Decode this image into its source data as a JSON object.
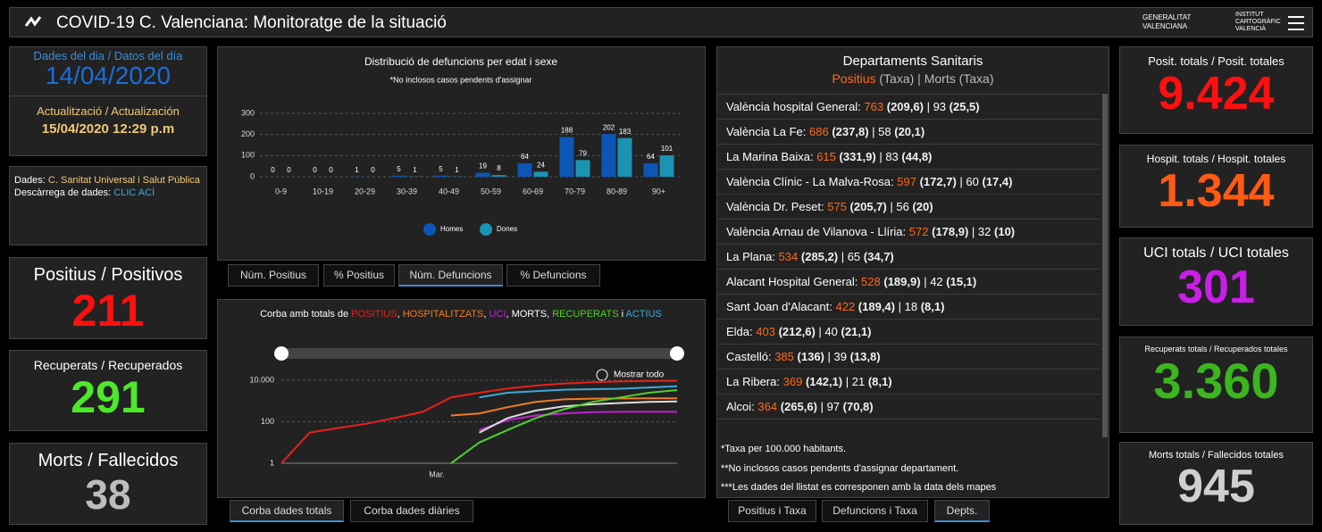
{
  "header": {
    "title": "COVID-19 C. Valenciana: Monitoratge de la situació",
    "logo1": "GENERALITAT VALENCIANA",
    "logo2": "INSTITUT CARTOGRÀFIC VALENCIÀ"
  },
  "day_panel": {
    "label": "Dades del dia / Datos del día",
    "date": "14/04/2020",
    "update_label": "Actualització / Actualización",
    "update_date": "15/04/2020 12:29 p.m"
  },
  "source_panel": {
    "source_label": "Dades:",
    "source": "C. Sanitat Universal i Salut Pública",
    "download_label": "Descàrrega de dades:",
    "link": "CLIC ACÍ"
  },
  "kpis_left": [
    {
      "label": "Positius / Positivos",
      "value": "211"
    },
    {
      "label": "Recuperats / Recuperados",
      "value": "291"
    },
    {
      "label": "Morts / Fallecidos",
      "value": "38"
    }
  ],
  "age_chart": {
    "type": "bar",
    "title": "Distribució de defuncions per edat i sexe",
    "subtitle": "*No inclosos casos pendents d'assignar",
    "categories": [
      "0-9",
      "10-19",
      "20-29",
      "30-39",
      "40-49",
      "50-59",
      "60-69",
      "70-79",
      "80-89",
      "90+"
    ],
    "series": [
      {
        "name": "Homes",
        "color": "#0d56b5",
        "values": [
          0,
          0,
          1,
          5,
          5,
          19,
          64,
          188,
          202,
          64
        ]
      },
      {
        "name": "Dones",
        "color": "#1b93b3",
        "values": [
          0,
          0,
          0,
          1,
          1,
          8,
          24,
          79,
          183,
          101
        ]
      }
    ],
    "ylim": [
      0,
      300
    ],
    "yticks": [
      0,
      100,
      200,
      300
    ],
    "grid": true
  },
  "age_tabs": [
    "Núm. Positius",
    "% Positius",
    "Núm. Defuncions",
    "% Defuncions"
  ],
  "curve_chart": {
    "type": "line",
    "title_parts": [
      {
        "text": "Corba amb totals de ",
        "color": "#ffffff"
      },
      {
        "text": "POSITIUS",
        "color": "#e8201c"
      },
      {
        "text": ", ",
        "color": "#ffffff"
      },
      {
        "text": "HOSPITALITZATS",
        "color": "#f07d24"
      },
      {
        "text": ", ",
        "color": "#ffffff"
      },
      {
        "text": "UCI",
        "color": "#c51fd6"
      },
      {
        "text": ", MORTS, ",
        "color": "#ffffff"
      },
      {
        "text": "RECUPERATS",
        "color": "#4fd12c"
      },
      {
        "text": " i ",
        "color": "#ffffff"
      },
      {
        "text": "ACTIUS",
        "color": "#3fa9d8"
      }
    ],
    "zoom_label": "Mostrar todo",
    "x": [
      0,
      4,
      8,
      12,
      16,
      20,
      24,
      28,
      32,
      36,
      40,
      44,
      48,
      52,
      56
    ],
    "xlim": [
      0,
      56
    ],
    "xticks": [
      {
        "value": 22,
        "label": "Mar."
      }
    ],
    "ylim": [
      1,
      10000
    ],
    "log_scale": true,
    "yticks": [
      1,
      100,
      {
        "value": 10000,
        "label": "10.000"
      }
    ],
    "grid": true,
    "series": [
      {
        "name": "POSITIUS",
        "color": "#e8201c",
        "values": [
          1,
          30,
          50,
          80,
          150,
          300,
          1500,
          2500,
          4000,
          5500,
          7000,
          8000,
          8800,
          9200,
          9424
        ]
      },
      {
        "name": "HOSPITALITZATS",
        "color": "#f07d24",
        "values": [
          null,
          null,
          null,
          null,
          null,
          null,
          200,
          250,
          500,
          900,
          1200,
          1300,
          1330,
          1340,
          1344
        ]
      },
      {
        "name": "UCI",
        "color": "#c51fd6",
        "values": [
          null,
          null,
          null,
          null,
          null,
          null,
          null,
          40,
          120,
          200,
          250,
          290,
          300,
          300,
          301
        ]
      },
      {
        "name": "MORTS",
        "color": "#dddddd",
        "values": [
          null,
          null,
          null,
          null,
          null,
          null,
          null,
          30,
          150,
          350,
          550,
          700,
          800,
          900,
          945
        ]
      },
      {
        "name": "RECUPERATS",
        "color": "#4fd12c",
        "values": [
          null,
          null,
          null,
          null,
          null,
          null,
          1,
          10,
          40,
          150,
          400,
          900,
          1500,
          2500,
          3360
        ]
      },
      {
        "name": "ACTIUS",
        "color": "#3fa9d8",
        "values": [
          null,
          null,
          null,
          null,
          null,
          null,
          null,
          1500,
          2500,
          3000,
          3500,
          3700,
          3900,
          4500,
          5119
        ]
      }
    ]
  },
  "curve_tabs": [
    "Corba dades totals",
    "Corba dades diàries"
  ],
  "departments": {
    "title": "Departaments Sanitaris",
    "legend_pos": "Positius",
    "legend_taxa1": "(Taxa)",
    "legend_morts": "Morts",
    "legend_taxa2": "(Taxa)",
    "rows": [
      {
        "name": "València hospital General:",
        "pos": "763",
        "pos_taxa": "(209,6)",
        "morts": "93",
        "morts_taxa": "(25,5)"
      },
      {
        "name": "València La Fe:",
        "pos": "686",
        "pos_taxa": "(237,8)",
        "morts": "58",
        "morts_taxa": "(20,1)"
      },
      {
        "name": "La Marina Baixa:",
        "pos": "615",
        "pos_taxa": "(331,9)",
        "morts": "83",
        "morts_taxa": "(44,8)"
      },
      {
        "name": "València Clínic - La Malva-Rosa:",
        "pos": "597",
        "pos_taxa": "(172,7)",
        "morts": "60",
        "morts_taxa": "(17,4)"
      },
      {
        "name": "València Dr. Peset:",
        "pos": "575",
        "pos_taxa": "(205,7)",
        "morts": "56",
        "morts_taxa": "(20)"
      },
      {
        "name": "València Arnau de Vilanova - Llíria:",
        "pos": "572",
        "pos_taxa": "(178,9)",
        "morts": "32",
        "morts_taxa": "(10)"
      },
      {
        "name": "La Plana:",
        "pos": "534",
        "pos_taxa": "(285,2)",
        "morts": "65",
        "morts_taxa": "(34,7)"
      },
      {
        "name": "Alacant Hospital General:",
        "pos": "528",
        "pos_taxa": "(189,9)",
        "morts": "42",
        "morts_taxa": "(15,1)"
      },
      {
        "name": "Sant Joan d'Alacant:",
        "pos": "422",
        "pos_taxa": "(189,4)",
        "morts": "18",
        "morts_taxa": "(8,1)"
      },
      {
        "name": "Elda:",
        "pos": "403",
        "pos_taxa": "(212,6)",
        "morts": "40",
        "morts_taxa": "(21,1)"
      },
      {
        "name": "Castelló:",
        "pos": "385",
        "pos_taxa": "(136)",
        "morts": "39",
        "morts_taxa": "(13,8)"
      },
      {
        "name": "La Ribera:",
        "pos": "369",
        "pos_taxa": "(142,1)",
        "morts": "21",
        "morts_taxa": "(8,1)"
      },
      {
        "name": "Alcoi:",
        "pos": "364",
        "pos_taxa": "(265,6)",
        "morts": "97",
        "morts_taxa": "(70,8)"
      }
    ],
    "notes": [
      "*Taxa per 100.000 habitants.",
      "**No inclosos casos pendents d'assignar departament.",
      "***Les dades del llistat es corresponen amb la data dels mapes"
    ]
  },
  "dept_tabs": [
    "Positius i Taxa",
    "Defuncions i Taxa",
    "Depts."
  ],
  "kpis_right": [
    {
      "label": "Posit. totals / Posit. totales",
      "value": "9.424",
      "color": "#ff1010"
    },
    {
      "label": "Hospit. totals / Hospit. totales",
      "value": "1.344",
      "color": "#ff5a14"
    },
    {
      "label": "UCI totals / UCI totales",
      "value": "301",
      "color": "#c81ee6"
    },
    {
      "label": "Recuperats totals / Recuperados totales",
      "value": "3.360",
      "color": "#3cb51e"
    },
    {
      "label": "Morts totals / Fallecidos totales",
      "value": "945",
      "color": "#cfcfcf"
    }
  ]
}
